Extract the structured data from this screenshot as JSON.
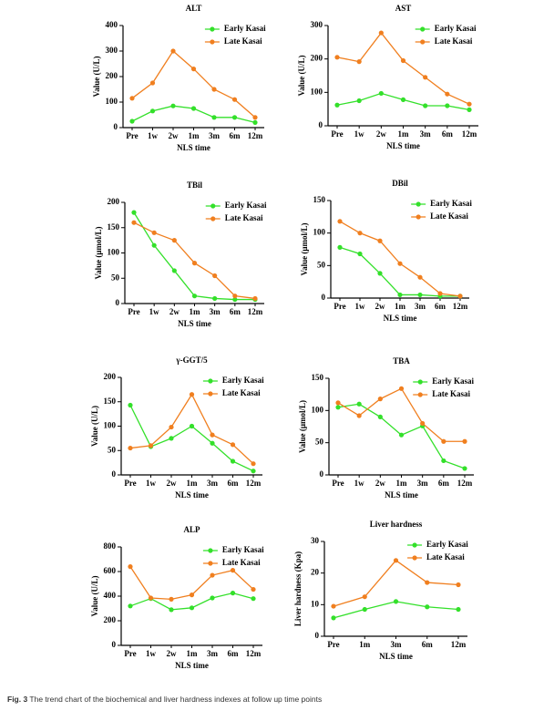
{
  "chart_data": [
    {
      "type": "line",
      "title": "ALT",
      "y_label": "Value (U/L)",
      "x_label": "NLS time",
      "categories": [
        "Pre",
        "1w",
        "2w",
        "1m",
        "3m",
        "6m",
        "12m"
      ],
      "series": [
        {
          "name": "Early Kasai",
          "color": "#33e02a",
          "values": [
            25,
            65,
            85,
            75,
            40,
            40,
            20
          ]
        },
        {
          "name": "Late Kasai",
          "color": "#f07f1f",
          "values": [
            115,
            175,
            300,
            230,
            150,
            110,
            40
          ]
        }
      ],
      "ylim": [
        0,
        400
      ],
      "yticks": [
        0,
        100,
        200,
        300,
        400
      ]
    },
    {
      "type": "line",
      "title": "AST",
      "y_label": "Value (U/L)",
      "x_label": "NLS time",
      "categories": [
        "Pre",
        "1w",
        "2w",
        "1m",
        "3m",
        "6m",
        "12m"
      ],
      "series": [
        {
          "name": "Early Kasai",
          "color": "#33e02a",
          "values": [
            62,
            75,
            97,
            78,
            60,
            60,
            48
          ]
        },
        {
          "name": "Late Kasai",
          "color": "#f07f1f",
          "values": [
            205,
            192,
            278,
            195,
            145,
            95,
            65
          ]
        }
      ],
      "ylim": [
        0,
        300
      ],
      "yticks": [
        0,
        100,
        200,
        300
      ]
    },
    {
      "type": "line",
      "title": "TBil",
      "y_label": "Value (μmol/L)",
      "x_label": "NLS time",
      "categories": [
        "Pre",
        "1w",
        "2w",
        "1m",
        "3m",
        "6m",
        "12m"
      ],
      "series": [
        {
          "name": "Early Kasai",
          "color": "#33e02a",
          "values": [
            180,
            115,
            65,
            15,
            10,
            8,
            8
          ]
        },
        {
          "name": "Late Kasai",
          "color": "#f07f1f",
          "values": [
            160,
            140,
            125,
            80,
            55,
            15,
            10
          ]
        }
      ],
      "ylim": [
        0,
        200
      ],
      "yticks": [
        0,
        50,
        100,
        150,
        200
      ]
    },
    {
      "type": "line",
      "title": "DBil",
      "y_label": "Value (μmol/L)",
      "x_label": "NLS time",
      "categories": [
        "Pre",
        "1w",
        "2w",
        "1m",
        "3m",
        "6m",
        "12m"
      ],
      "series": [
        {
          "name": "Early Kasai",
          "color": "#33e02a",
          "values": [
            78,
            68,
            38,
            5,
            5,
            3,
            3
          ]
        },
        {
          "name": "Late Kasai",
          "color": "#f07f1f",
          "values": [
            118,
            100,
            88,
            53,
            32,
            7,
            3
          ]
        }
      ],
      "ylim": [
        0,
        150
      ],
      "yticks": [
        0,
        50,
        100,
        150
      ]
    },
    {
      "type": "line",
      "title": "γ-GGT/5",
      "y_label": "Value (U/L)",
      "x_label": "NLS time",
      "categories": [
        "Pre",
        "1w",
        "2w",
        "1m",
        "3m",
        "6m",
        "12m"
      ],
      "series": [
        {
          "name": "Early Kasai",
          "color": "#33e02a",
          "values": [
            143,
            58,
            75,
            100,
            65,
            28,
            8
          ]
        },
        {
          "name": "Late Kasai",
          "color": "#f07f1f",
          "values": [
            55,
            60,
            98,
            165,
            82,
            62,
            23
          ]
        }
      ],
      "ylim": [
        0,
        200
      ],
      "yticks": [
        0,
        50,
        100,
        150,
        200
      ]
    },
    {
      "type": "line",
      "title": "TBA",
      "y_label": "Value (μmol/L)",
      "x_label": "NLS time",
      "categories": [
        "Pre",
        "1w",
        "2w",
        "1m",
        "3m",
        "6m",
        "12m"
      ],
      "series": [
        {
          "name": "Early Kasai",
          "color": "#33e02a",
          "values": [
            105,
            110,
            90,
            62,
            76,
            22,
            10
          ]
        },
        {
          "name": "Late Kasai",
          "color": "#f07f1f",
          "values": [
            112,
            92,
            118,
            134,
            80,
            52,
            52
          ]
        }
      ],
      "ylim": [
        0,
        150
      ],
      "yticks": [
        0,
        50,
        100,
        150
      ]
    },
    {
      "type": "line",
      "title": "ALP",
      "y_label": "Value (U/L)",
      "x_label": "NLS time",
      "categories": [
        "Pre",
        "1w",
        "2w",
        "1m",
        "3m",
        "6m",
        "12m"
      ],
      "series": [
        {
          "name": "Early Kasai",
          "color": "#33e02a",
          "values": [
            320,
            380,
            290,
            305,
            385,
            425,
            380
          ]
        },
        {
          "name": "Late Kasai",
          "color": "#f07f1f",
          "values": [
            640,
            385,
            375,
            410,
            570,
            610,
            455
          ]
        }
      ],
      "ylim": [
        0,
        800
      ],
      "yticks": [
        0,
        200,
        400,
        600,
        800
      ]
    },
    {
      "type": "line",
      "title": "Liver hardness",
      "y_label": "Liver hardness (Kpa)",
      "x_label": "NLS time",
      "categories": [
        "Pre",
        "1m",
        "3m",
        "6m",
        "12m"
      ],
      "series": [
        {
          "name": "Early Kasai",
          "color": "#33e02a",
          "values": [
            5.8,
            8.5,
            11,
            9.3,
            8.5
          ]
        },
        {
          "name": "Late Kasai",
          "color": "#f07f1f",
          "values": [
            9.5,
            12.5,
            24,
            17,
            16.3
          ]
        }
      ],
      "ylim": [
        0,
        30
      ],
      "yticks": [
        0,
        10,
        20,
        30
      ]
    }
  ],
  "caption": {
    "label": "Fig. 3",
    "text": "The trend chart of the biochemical and liver hardness indexes at follow up time points"
  }
}
